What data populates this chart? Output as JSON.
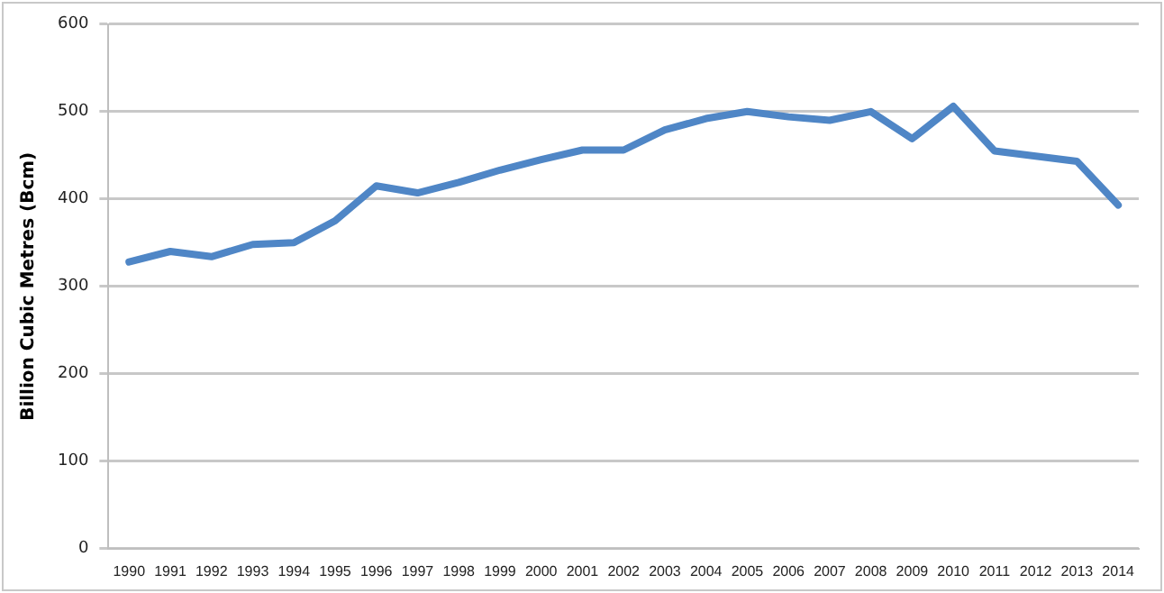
{
  "chart_data": {
    "type": "line",
    "ylabel": "Billion Cubic Metres (Bcm)",
    "categories": [
      "1990",
      "1991",
      "1992",
      "1993",
      "1994",
      "1995",
      "1996",
      "1997",
      "1998",
      "1999",
      "2000",
      "2001",
      "2002",
      "2003",
      "2004",
      "2005",
      "2006",
      "2007",
      "2008",
      "2009",
      "2010",
      "2011",
      "2012",
      "2013",
      "2014"
    ],
    "series": [
      {
        "color": "#4f86c6",
        "values": [
          328,
          340,
          334,
          348,
          350,
          375,
          415,
          407,
          419,
          433,
          445,
          456,
          456,
          479,
          492,
          500,
          494,
          490,
          500,
          469,
          506,
          455,
          449,
          443,
          393
        ]
      }
    ],
    "ylim": [
      0,
      600
    ],
    "yticks": [
      0,
      100,
      200,
      300,
      400,
      500,
      600
    ],
    "grid": "y",
    "legend": false,
    "marker": "none",
    "line_style": "solid"
  }
}
